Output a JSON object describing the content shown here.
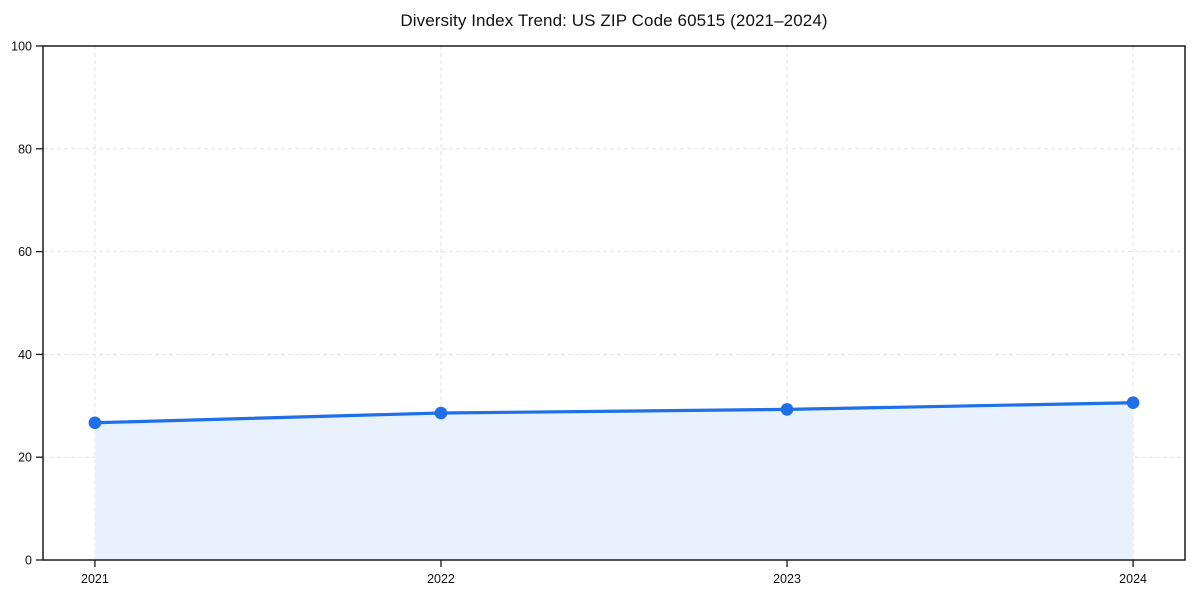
{
  "chart_data": {
    "type": "line",
    "title": "Diversity Index Trend: US ZIP Code 60515 (2021–2024)",
    "x": [
      "2021",
      "2022",
      "2023",
      "2024"
    ],
    "series": [
      {
        "name": "Diversity Index",
        "values": [
          26.7,
          28.6,
          29.3,
          30.6
        ]
      }
    ],
    "xlabel": "",
    "ylabel": "",
    "ylim": [
      0,
      100
    ],
    "yticks": [
      0,
      20,
      40,
      60,
      80,
      100
    ],
    "xticklabels": [
      "2021",
      "2022",
      "2023",
      "2024"
    ],
    "grid": true,
    "grid_style": "dashed",
    "legend_position": "none",
    "marker": "circle",
    "area_fill": true,
    "colors": {
      "line": "#1e6fe8",
      "marker": "#1e6fe8",
      "area": "#e9f1fd",
      "grid": "#e3e3e3",
      "axis": "#1a1a1a",
      "tick_text": "#111111",
      "background": "#ffffff"
    }
  }
}
